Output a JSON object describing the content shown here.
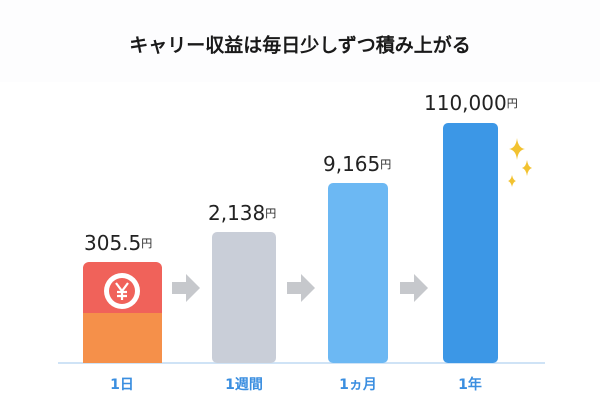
{
  "title": "キャリー収益は毎日少しずつ積み上がる",
  "steps": [
    {
      "value": "305.5",
      "unit": "円",
      "label": "1日"
    },
    {
      "value": "2,138",
      "unit": "円",
      "label": "1週間"
    },
    {
      "value": "9,165",
      "unit": "円",
      "label": "1ヵ月"
    },
    {
      "value": "110,000",
      "unit": "円",
      "label": "1年"
    }
  ]
}
